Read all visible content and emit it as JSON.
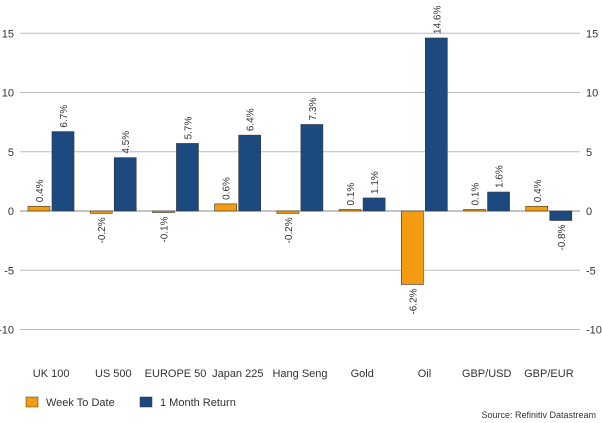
{
  "chart_data": {
    "type": "bar",
    "categories": [
      "UK 100",
      "US 500",
      "EUROPE 50",
      "Japan 225",
      "Hang Seng",
      "Gold",
      "Oil",
      "GBP/USD",
      "GBP/EUR"
    ],
    "series": [
      {
        "name": "Week To Date",
        "color": "#f39c12",
        "values": [
          0.4,
          -0.2,
          -0.1,
          0.6,
          -0.2,
          0.1,
          -6.2,
          0.1,
          0.4
        ],
        "labels": [
          "0.4%",
          "-0.2%",
          "-0.1%",
          "0.6%",
          "-0.2%",
          "0.1%",
          "-6.2%",
          "0.1%",
          "0.4%"
        ]
      },
      {
        "name": "1 Month Return",
        "color": "#1c4a80",
        "values": [
          6.7,
          4.5,
          5.7,
          6.4,
          7.3,
          1.1,
          14.6,
          1.6,
          -0.8
        ],
        "labels": [
          "6.7%",
          "4.5%",
          "5.7%",
          "6.4%",
          "7.3%",
          "1.1%",
          "14.6%",
          "1.6%",
          "-0.8%"
        ]
      }
    ],
    "yticks": [
      -10,
      -5,
      0,
      5,
      10,
      15
    ],
    "ytick_labels": [
      "-10",
      "-5",
      "0",
      "5",
      "10",
      "15"
    ],
    "ylim": [
      -12,
      17
    ],
    "grid": true,
    "y_axis": "both sides",
    "legend_position": "bottom-left",
    "source": "Source: Refinitiv Datastream"
  }
}
